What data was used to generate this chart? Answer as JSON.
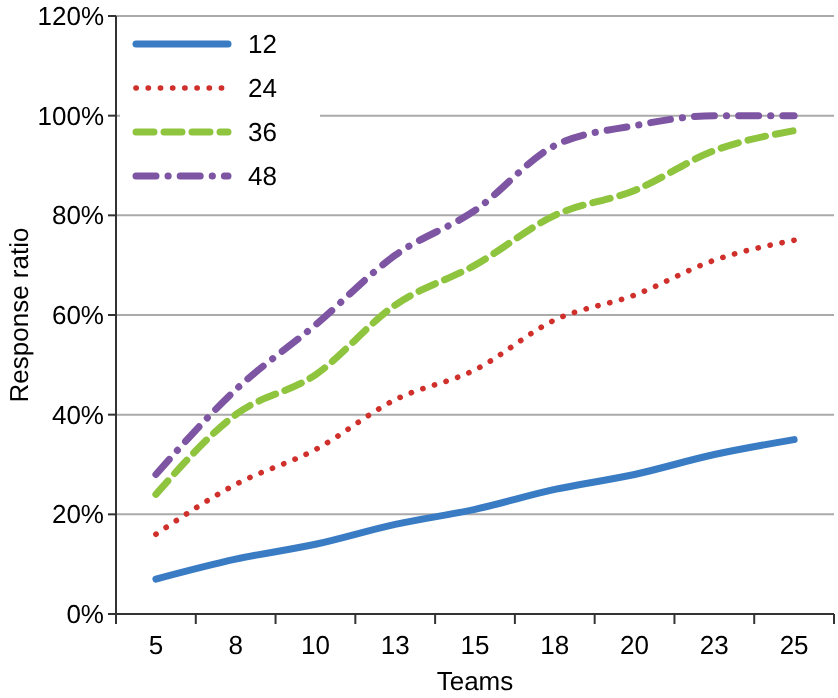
{
  "chart_data": {
    "type": "line",
    "xlabel": "Teams",
    "ylabel": "Response ratio",
    "categories": [
      "5",
      "8",
      "10",
      "13",
      "15",
      "18",
      "20",
      "23",
      "25"
    ],
    "series": [
      {
        "name": "12",
        "color": "#3a7cc3",
        "line_style": "solid",
        "values": [
          7,
          11,
          14,
          18,
          21,
          25,
          28,
          32,
          35
        ]
      },
      {
        "name": "24",
        "color": "#d0302b",
        "line_style": "dotted",
        "values": [
          16,
          26,
          33,
          43,
          49,
          59,
          64,
          71,
          75
        ]
      },
      {
        "name": "36",
        "color": "#8fc43f",
        "line_style": "dashed",
        "values": [
          24,
          40,
          48,
          62,
          70,
          80,
          85,
          93,
          97
        ]
      },
      {
        "name": "48",
        "color": "#7d55a3",
        "line_style": "dashdot",
        "values": [
          28,
          45,
          58,
          72,
          81,
          94,
          98,
          100,
          100
        ]
      }
    ],
    "ylim": [
      0,
      120
    ],
    "yticks": [
      {
        "value": 0,
        "label": "0%"
      },
      {
        "value": 20,
        "label": "20%"
      },
      {
        "value": 40,
        "label": "40%"
      },
      {
        "value": 60,
        "label": "60%"
      },
      {
        "value": 80,
        "label": "80%"
      },
      {
        "value": 100,
        "label": "100%"
      },
      {
        "value": 120,
        "label": "120%"
      }
    ],
    "grid": "y",
    "legend": "top left",
    "marker": "none"
  }
}
